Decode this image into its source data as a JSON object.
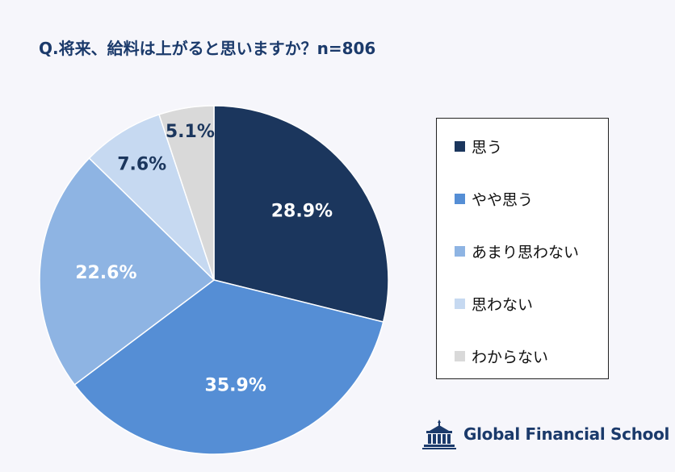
{
  "title": "Q.将来、給料は上がると思いますか？n=806",
  "chart_data": {
    "type": "pie",
    "title": "Q.将来、給料は上がると思いますか？n=806",
    "categories": [
      "思う",
      "やや思う",
      "あまり思わない",
      "思わない",
      "わからない"
    ],
    "values": [
      28.9,
      35.9,
      22.6,
      7.6,
      5.1
    ],
    "value_labels": [
      "28.9%",
      "35.9%",
      "22.6%",
      "7.6%",
      "5.1%"
    ],
    "colors": [
      "#1b365d",
      "#558ed5",
      "#8eb4e3",
      "#c6d9f1",
      "#d9d9d9"
    ],
    "label_colors": [
      "#ffffff",
      "#ffffff",
      "#ffffff",
      "#1b365d",
      "#1b365d"
    ],
    "start": "12-o'clock, clockwise",
    "legend": "right"
  },
  "legend": {
    "items": [
      {
        "label": "思う",
        "color": "#1b365d"
      },
      {
        "label": "やや思う",
        "color": "#558ed5"
      },
      {
        "label": "あまり思わない",
        "color": "#8eb4e3"
      },
      {
        "label": "思わない",
        "color": "#c6d9f1"
      },
      {
        "label": "わからない",
        "color": "#d9d9d9"
      }
    ]
  },
  "brand": {
    "name": "Global Financial School",
    "logo_icon": "school-building-icon",
    "color": "#1b3a6b"
  }
}
